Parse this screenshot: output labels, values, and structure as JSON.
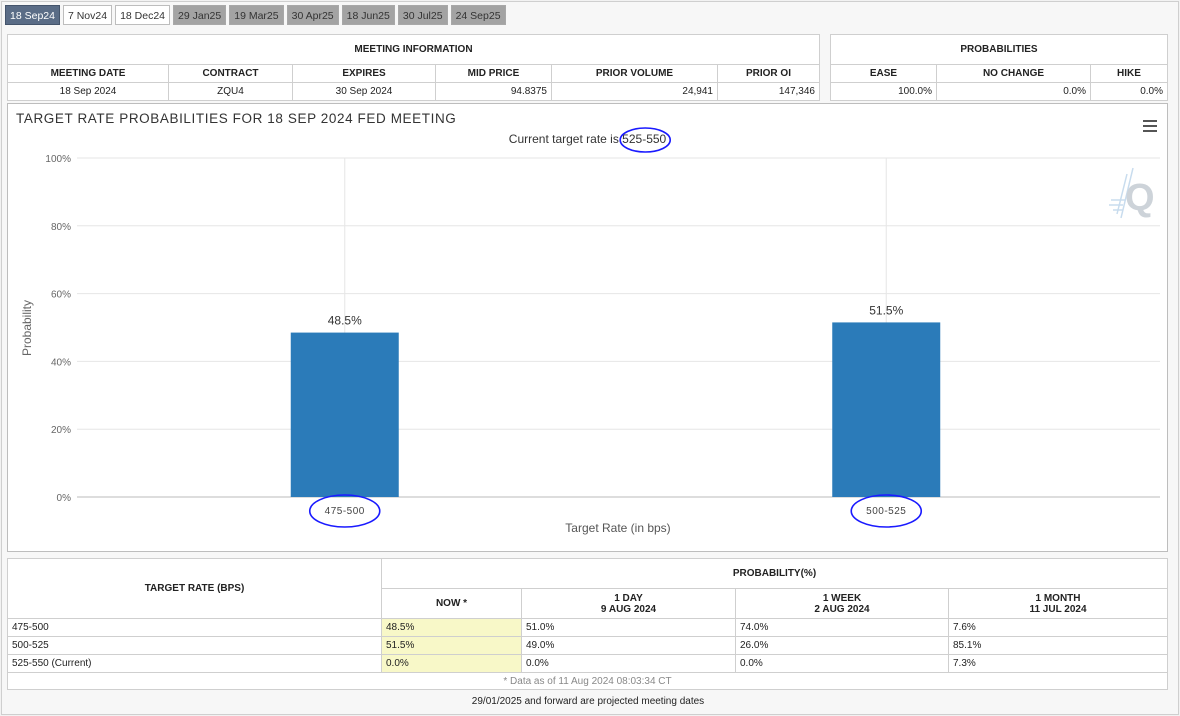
{
  "tabs": [
    {
      "label": "18 Sep24",
      "state": "active"
    },
    {
      "label": "7 Nov24",
      "state": "light"
    },
    {
      "label": "18 Dec24",
      "state": "light"
    },
    {
      "label": "29 Jan25",
      "state": "gray"
    },
    {
      "label": "19 Mar25",
      "state": "gray"
    },
    {
      "label": "30 Apr25",
      "state": "gray"
    },
    {
      "label": "18 Jun25",
      "state": "gray"
    },
    {
      "label": "30 Jul25",
      "state": "gray"
    },
    {
      "label": "24 Sep25",
      "state": "gray"
    }
  ],
  "meeting_info": {
    "title": "MEETING INFORMATION",
    "headers": [
      "MEETING DATE",
      "CONTRACT",
      "EXPIRES",
      "MID PRICE",
      "PRIOR VOLUME",
      "PRIOR OI"
    ],
    "row": [
      "18 Sep 2024",
      "ZQU4",
      "30 Sep 2024",
      "94.8375",
      "24,941",
      "147,346"
    ]
  },
  "probabilities": {
    "title": "PROBABILITIES",
    "headers": [
      "EASE",
      "NO CHANGE",
      "HIKE"
    ],
    "row": [
      "100.0%",
      "0.0%",
      "0.0%"
    ]
  },
  "chart_data": {
    "type": "bar",
    "title": "TARGET RATE PROBABILITIES FOR 18 SEP 2024 FED MEETING",
    "subtitle_prefix": "Current target rate is ",
    "subtitle_rate": "525-550",
    "categories": [
      "475-500",
      "500-525"
    ],
    "values": [
      48.5,
      51.5
    ],
    "data_labels": [
      "48.5%",
      "51.5%"
    ],
    "xlabel": "Target Rate (in bps)",
    "ylabel": "Probability",
    "ylim": [
      0,
      100
    ],
    "yticks": [
      0,
      20,
      40,
      60,
      80,
      100
    ],
    "ytick_labels": [
      "0%",
      "20%",
      "40%",
      "60%",
      "80%",
      "100%"
    ],
    "bar_color": "#2b7bb9",
    "grid": true,
    "annotation_color": "#1a1aff"
  },
  "prob_table": {
    "header_target": "TARGET RATE (BPS)",
    "header_prob": "PROBABILITY(%)",
    "cols": [
      {
        "line1": "NOW *",
        "line2": ""
      },
      {
        "line1": "1 DAY",
        "line2": "9 AUG 2024"
      },
      {
        "line1": "1 WEEK",
        "line2": "2 AUG 2024"
      },
      {
        "line1": "1 MONTH",
        "line2": "11 JUL 2024"
      }
    ],
    "rows": [
      {
        "rate": "475-500",
        "vals": [
          "48.5%",
          "51.0%",
          "74.0%",
          "7.6%"
        ]
      },
      {
        "rate": "500-525",
        "vals": [
          "51.5%",
          "49.0%",
          "26.0%",
          "85.1%"
        ]
      },
      {
        "rate": "525-550 (Current)",
        "vals": [
          "0.0%",
          "0.0%",
          "0.0%",
          "7.3%"
        ]
      }
    ],
    "note": "* Data as of 11 Aug 2024 08:03:34 CT"
  },
  "footer": "29/01/2025 and forward are projected meeting dates"
}
